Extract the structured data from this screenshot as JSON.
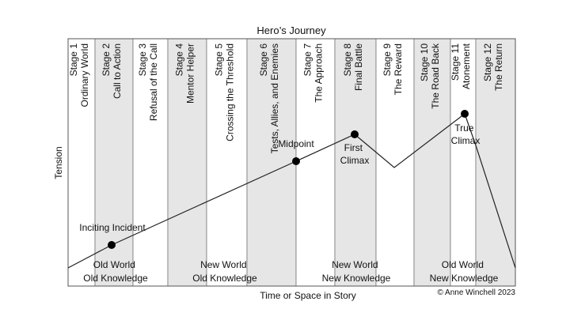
{
  "title": "Hero’s Journey",
  "axes": {
    "y_label": "Tension",
    "x_label": "Time or Space in Story"
  },
  "copyright": "© Anne Winchell 2023",
  "stages": [
    {
      "num": "Stage 1",
      "name": "Ordinary World",
      "shaded": false
    },
    {
      "num": "Stage 2",
      "name": "Call to Action",
      "shaded": true
    },
    {
      "num": "Stage 3",
      "name": "Refusal of the Call",
      "shaded": false
    },
    {
      "num": "Stage 4",
      "name": "Mentor Helper",
      "shaded": true
    },
    {
      "num": "Stage 5",
      "name": "Crossing the Threshold",
      "shaded": false
    },
    {
      "num": "Stage 6",
      "name": "Tests, Allies, and Enemies",
      "shaded": true
    },
    {
      "num": "Stage 7",
      "name": "The Approach",
      "shaded": false
    },
    {
      "num": "Stage 8",
      "name": "Final Battle",
      "shaded": true
    },
    {
      "num": "Stage 9",
      "name": "The Reward",
      "shaded": false
    },
    {
      "num": "Stage 10",
      "name": "The Road Back",
      "shaded": true
    },
    {
      "num": "Stage 11",
      "name": "Atonement",
      "shaded": false
    },
    {
      "num": "Stage 12",
      "name": "The Return",
      "shaded": true
    }
  ],
  "events": [
    {
      "label": "Inciting Incident"
    },
    {
      "label": "Midpoint"
    },
    {
      "label": "First Climax"
    },
    {
      "label": "True Climax"
    }
  ],
  "worlds": [
    {
      "line1": "Old World",
      "line2": "Old Knowledge"
    },
    {
      "line1": "New World",
      "line2": "Old Knowledge"
    },
    {
      "line1": "New World",
      "line2": "New Knowledge"
    },
    {
      "line1": "Old World",
      "line2": "New Knowledge"
    }
  ]
}
